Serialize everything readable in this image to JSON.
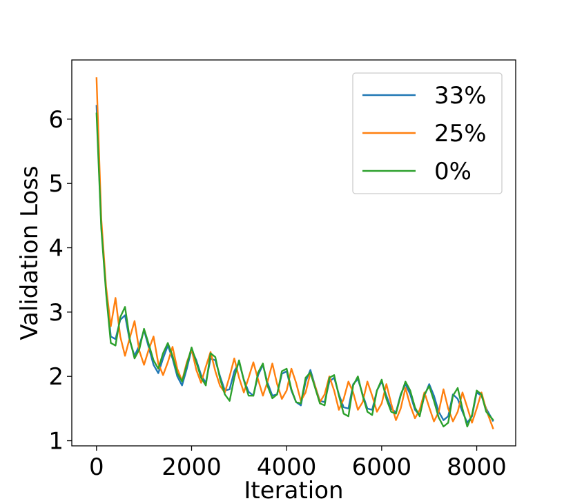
{
  "chart_data": {
    "type": "line",
    "xlabel": "Iteration",
    "ylabel": "Validation Loss",
    "xlim": [
      -520,
      8820
    ],
    "ylim": [
      0.92,
      6.92
    ],
    "xticks": [
      0,
      2000,
      4000,
      6000,
      8000
    ],
    "yticks": [
      1,
      2,
      3,
      4,
      5,
      6
    ],
    "grid": false,
    "legend_position": "top-right",
    "series": [
      {
        "name": "33%",
        "color": "#1f77b4",
        "x": [
          0,
          100,
          200,
          300,
          400,
          500,
          600,
          700,
          800,
          900,
          1000,
          1100,
          1200,
          1300,
          1400,
          1500,
          1600,
          1700,
          1800,
          1900,
          2000,
          2100,
          2200,
          2300,
          2400,
          2500,
          2600,
          2700,
          2800,
          2900,
          3000,
          3100,
          3200,
          3300,
          3400,
          3500,
          3600,
          3700,
          3800,
          3900,
          4000,
          4100,
          4200,
          4300,
          4400,
          4500,
          4600,
          4700,
          4800,
          4900,
          5000,
          5100,
          5200,
          5300,
          5400,
          5500,
          5600,
          5700,
          5800,
          5900,
          6000,
          6100,
          6200,
          6300,
          6400,
          6500,
          6600,
          6700,
          6800,
          6900,
          7000,
          7100,
          7200,
          7300,
          7400,
          7500,
          7600,
          7700,
          7800,
          7900,
          8000,
          8100,
          8200,
          8350
        ],
        "y": [
          6.22,
          4.35,
          3.35,
          2.62,
          2.58,
          2.88,
          2.95,
          2.55,
          2.32,
          2.48,
          2.72,
          2.45,
          2.18,
          2.05,
          2.28,
          2.48,
          2.28,
          2.0,
          1.86,
          2.12,
          2.42,
          2.25,
          2.02,
          1.9,
          2.28,
          2.25,
          2.0,
          1.78,
          1.8,
          2.08,
          2.22,
          1.95,
          1.76,
          1.7,
          2.02,
          2.18,
          1.9,
          1.7,
          1.72,
          2.04,
          2.08,
          1.78,
          1.6,
          1.55,
          1.92,
          2.1,
          1.85,
          1.62,
          1.6,
          1.92,
          1.98,
          1.72,
          1.52,
          1.5,
          1.88,
          1.96,
          1.72,
          1.5,
          1.48,
          1.78,
          1.92,
          1.7,
          1.5,
          1.44,
          1.72,
          1.88,
          1.72,
          1.48,
          1.4,
          1.7,
          1.88,
          1.7,
          1.45,
          1.32,
          1.38,
          1.72,
          1.65,
          1.45,
          1.28,
          1.38,
          1.75,
          1.7,
          1.5,
          1.3
        ]
      },
      {
        "name": "25%",
        "color": "#ff7f0e",
        "x": [
          0,
          100,
          200,
          300,
          400,
          500,
          600,
          700,
          800,
          900,
          1000,
          1100,
          1200,
          1300,
          1400,
          1500,
          1600,
          1700,
          1800,
          1900,
          2000,
          2100,
          2200,
          2300,
          2400,
          2500,
          2600,
          2700,
          2800,
          2900,
          3000,
          3100,
          3200,
          3300,
          3400,
          3500,
          3600,
          3700,
          3800,
          3900,
          4000,
          4100,
          4200,
          4300,
          4400,
          4500,
          4600,
          4700,
          4800,
          4900,
          5000,
          5100,
          5200,
          5300,
          5400,
          5500,
          5600,
          5700,
          5800,
          5900,
          6000,
          6100,
          6200,
          6300,
          6400,
          6500,
          6600,
          6700,
          6800,
          6900,
          7000,
          7100,
          7200,
          7300,
          7400,
          7500,
          7600,
          7700,
          7800,
          7900,
          8000,
          8100,
          8200,
          8350
        ],
        "y": [
          6.65,
          4.45,
          3.4,
          2.78,
          3.22,
          2.62,
          2.32,
          2.6,
          2.86,
          2.4,
          2.18,
          2.42,
          2.62,
          2.2,
          2.02,
          2.22,
          2.46,
          2.12,
          1.93,
          2.22,
          2.42,
          2.1,
          1.9,
          2.15,
          2.38,
          2.08,
          1.85,
          1.75,
          2.0,
          2.28,
          1.98,
          1.75,
          1.98,
          2.22,
          1.95,
          1.7,
          1.92,
          2.2,
          1.88,
          1.65,
          1.78,
          2.12,
          1.9,
          1.62,
          1.75,
          2.05,
          1.85,
          1.6,
          1.72,
          2.0,
          1.78,
          1.48,
          1.65,
          1.92,
          1.75,
          1.48,
          1.6,
          1.92,
          1.7,
          1.45,
          1.58,
          1.88,
          1.58,
          1.32,
          1.5,
          1.82,
          1.55,
          1.35,
          1.48,
          1.75,
          1.52,
          1.3,
          1.45,
          1.8,
          1.5,
          1.3,
          1.45,
          1.75,
          1.52,
          1.28,
          1.5,
          1.75,
          1.48,
          1.18
        ]
      },
      {
        "name": "0%",
        "color": "#2ca02c",
        "x": [
          0,
          100,
          200,
          300,
          400,
          500,
          600,
          700,
          800,
          900,
          1000,
          1100,
          1200,
          1300,
          1400,
          1500,
          1600,
          1700,
          1800,
          1900,
          2000,
          2100,
          2200,
          2300,
          2400,
          2500,
          2600,
          2700,
          2800,
          2900,
          3000,
          3100,
          3200,
          3300,
          3400,
          3500,
          3600,
          3700,
          3800,
          3900,
          4000,
          4100,
          4200,
          4300,
          4400,
          4500,
          4600,
          4700,
          4800,
          4900,
          5000,
          5100,
          5200,
          5300,
          5400,
          5500,
          5600,
          5700,
          5800,
          5900,
          6000,
          6100,
          6200,
          6300,
          6400,
          6500,
          6600,
          6700,
          6800,
          6900,
          7000,
          7100,
          7200,
          7300,
          7400,
          7500,
          7600,
          7700,
          7800,
          7900,
          8000,
          8100,
          8200,
          8350
        ],
        "y": [
          6.1,
          4.3,
          3.3,
          2.52,
          2.48,
          2.92,
          3.08,
          2.58,
          2.28,
          2.42,
          2.74,
          2.5,
          2.25,
          2.12,
          2.36,
          2.52,
          2.32,
          2.05,
          1.92,
          2.18,
          2.45,
          2.22,
          1.98,
          1.86,
          2.36,
          2.3,
          1.96,
          1.72,
          1.62,
          1.98,
          2.25,
          1.94,
          1.7,
          1.7,
          2.06,
          2.2,
          1.85,
          1.66,
          1.72,
          2.08,
          2.12,
          1.8,
          1.6,
          1.58,
          1.98,
          2.06,
          1.82,
          1.58,
          1.55,
          1.98,
          2.02,
          1.7,
          1.42,
          1.38,
          1.86,
          2.0,
          1.7,
          1.45,
          1.4,
          1.78,
          1.95,
          1.65,
          1.45,
          1.42,
          1.7,
          1.92,
          1.78,
          1.52,
          1.38,
          1.72,
          1.85,
          1.62,
          1.36,
          1.22,
          1.28,
          1.7,
          1.82,
          1.5,
          1.22,
          1.4,
          1.78,
          1.72,
          1.45,
          1.32
        ]
      }
    ]
  }
}
